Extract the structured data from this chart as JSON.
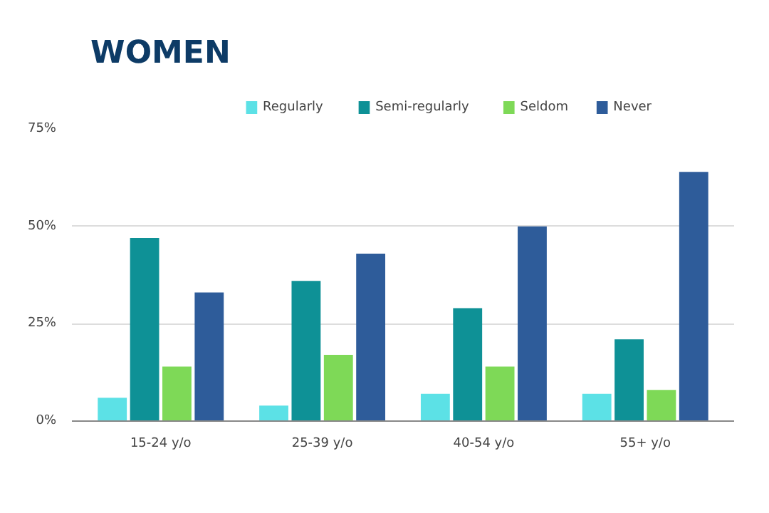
{
  "chart_data": {
    "type": "bar",
    "title": "WOMEN",
    "categories": [
      "15-24 y/o",
      "25-39 y/o",
      "40-54 y/o",
      "55+ y/o"
    ],
    "series": [
      {
        "name": "Regularly",
        "color": "#5ce1e6",
        "values": [
          6,
          4,
          7,
          7
        ]
      },
      {
        "name": "Semi-regularly",
        "color": "#0e9196",
        "values": [
          47,
          36,
          29,
          21
        ]
      },
      {
        "name": "Seldom",
        "color": "#7ed957",
        "values": [
          14,
          17,
          14,
          8
        ]
      },
      {
        "name": "Never",
        "color": "#2e5c9a",
        "values": [
          33,
          43,
          50,
          64
        ]
      }
    ],
    "ylim": [
      0,
      75
    ],
    "yticks": [
      {
        "value": 0,
        "label": "0%"
      },
      {
        "value": 25,
        "label": "25%"
      },
      {
        "value": 50,
        "label": "50%"
      },
      {
        "value": 75,
        "label": "75%"
      }
    ],
    "grid": "y",
    "legend": "top"
  }
}
